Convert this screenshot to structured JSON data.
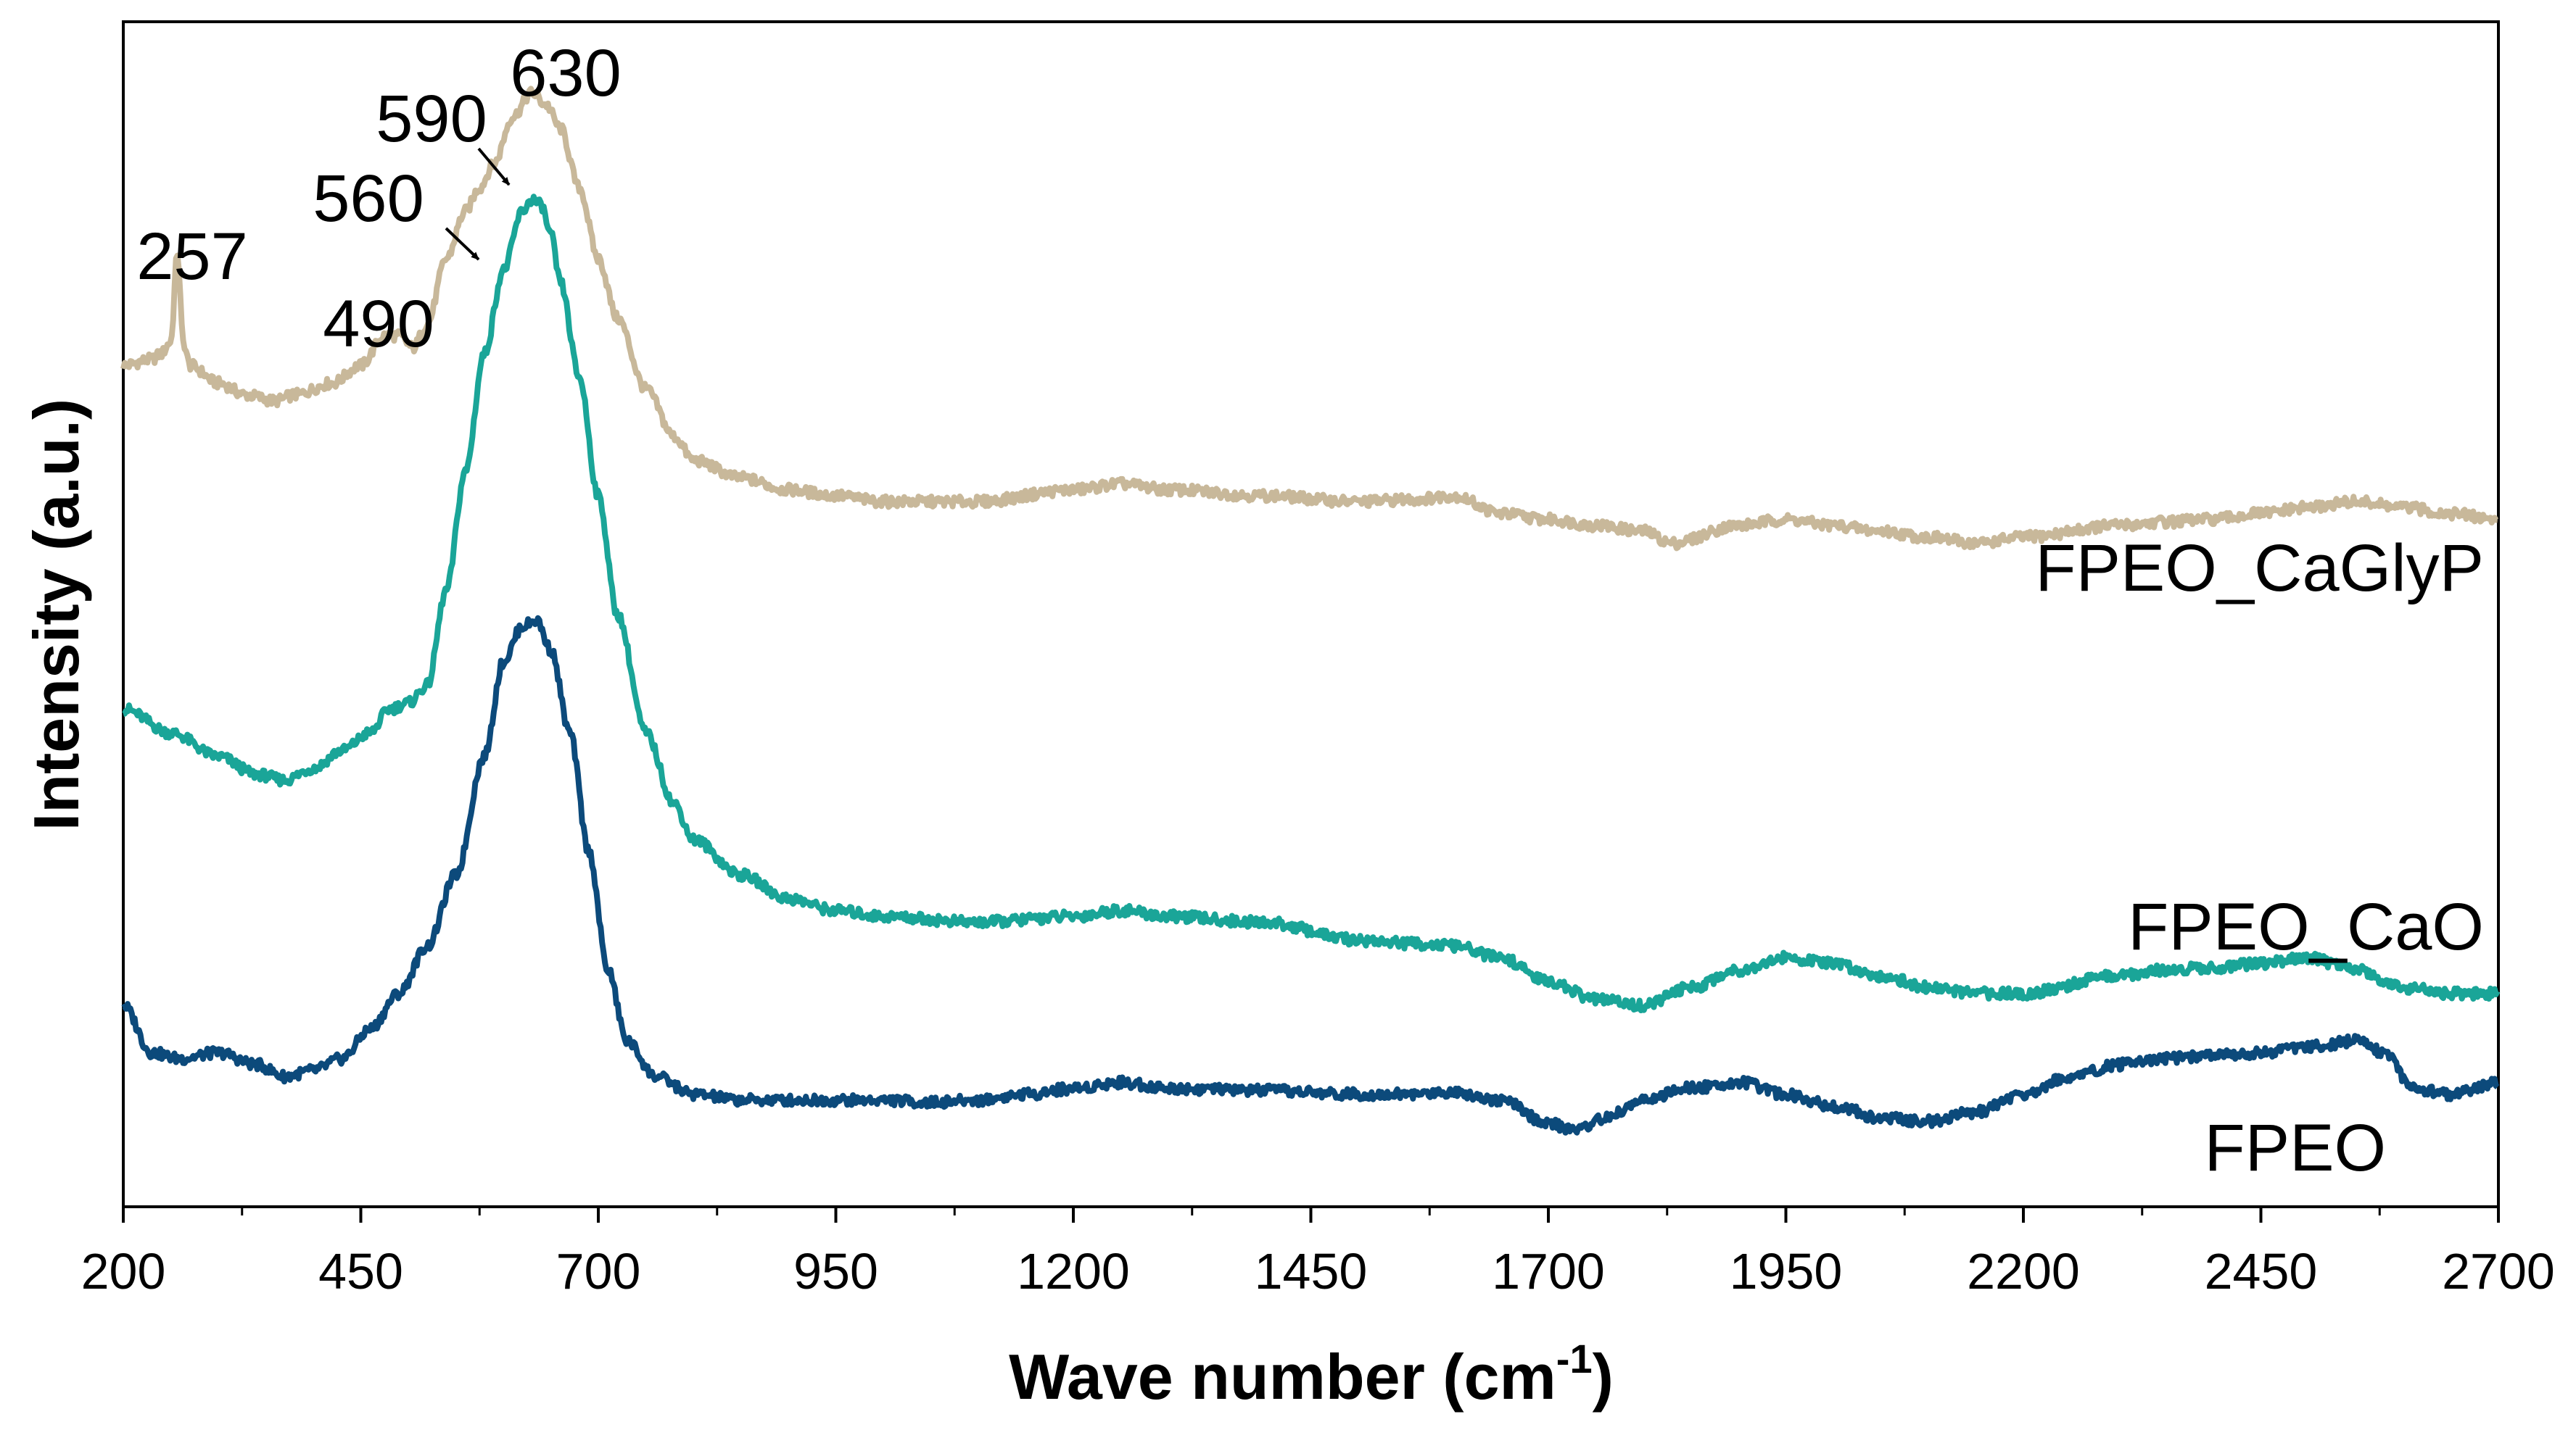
{
  "chart_data": {
    "type": "line",
    "title": "",
    "xlabel": "Wave number (cm",
    "xlabel_sup": "-1",
    "xlabel_close": ")",
    "ylabel": "Intensity (a.u.)",
    "xlim": [
      200,
      2700
    ],
    "ylim": [
      0,
      100
    ],
    "x_ticks": [
      200,
      450,
      700,
      950,
      1200,
      1450,
      1700,
      1950,
      2200,
      2450,
      2700
    ],
    "x_tick_labels": [
      "200",
      "450",
      "700",
      "950",
      "1200",
      "1450",
      "1700",
      "1950",
      "2200",
      "2450",
      "2700"
    ],
    "y_ticks_shown": false,
    "series": [
      {
        "name": "FPEO_CaGlyP",
        "label": "FPEO_CaGlyP",
        "color": "#c8b89a",
        "x": [
          200,
          230,
          240,
          250,
          257,
          263,
          270,
          300,
          330,
          360,
          380,
          420,
          450,
          475,
          490,
          505,
          520,
          540,
          560,
          575,
          590,
          610,
          630,
          645,
          660,
          680,
          700,
          720,
          750,
          780,
          800,
          850,
          900,
          950,
          1000,
          1100,
          1200,
          1250,
          1300,
          1400,
          1500,
          1560,
          1600,
          1650,
          1700,
          1750,
          1800,
          1830,
          1900,
          1950,
          2000,
          2050,
          2100,
          2150,
          2200,
          2300,
          2350,
          2400,
          2450,
          2500,
          2550,
          2600,
          2650,
          2700
        ],
        "y": [
          71,
          71.5,
          72,
          73,
          80.5,
          73,
          71,
          69.5,
          68.5,
          68,
          68.5,
          69.5,
          71,
          73.5,
          73.5,
          72.5,
          74.5,
          80,
          84,
          86,
          88,
          92,
          94,
          93,
          91,
          86,
          80,
          75,
          69,
          65,
          63,
          61.5,
          60.5,
          60,
          59.5,
          59.5,
          60.5,
          61,
          60.5,
          60,
          59.5,
          59.7,
          60,
          58.5,
          58,
          57.5,
          57,
          56,
          57.5,
          58,
          57.5,
          57,
          56.5,
          56,
          56.5,
          57.5,
          57.8,
          58,
          58.5,
          59,
          59.5,
          59,
          58.5,
          58
        ]
      },
      {
        "name": "FPEO_CaO",
        "label": "FPEO_CaO",
        "color": "#1aa598",
        "x": [
          200,
          250,
          300,
          340,
          370,
          400,
          430,
          460,
          480,
          500,
          520,
          540,
          560,
          580,
          600,
          620,
          630,
          640,
          650,
          660,
          680,
          700,
          720,
          750,
          780,
          800,
          850,
          900,
          950,
          1000,
          1100,
          1200,
          1250,
          1300,
          1400,
          1500,
          1560,
          1600,
          1650,
          1700,
          1750,
          1800,
          1850,
          1900,
          1950,
          2000,
          2050,
          2100,
          2150,
          2200,
          2300,
          2350,
          2400,
          2450,
          2500,
          2550,
          2600,
          2650,
          2700
        ],
        "y": [
          42,
          40,
          38,
          36.5,
          36,
          37,
          38.5,
          40,
          42,
          42.5,
          44,
          52,
          62,
          72,
          79,
          84,
          85,
          84.5,
          82,
          78,
          70,
          60,
          50,
          40,
          34,
          31,
          28,
          26,
          25,
          24.5,
          24,
          24.5,
          25,
          24.5,
          24,
          22.5,
          22.2,
          22,
          21,
          19,
          17.5,
          17,
          18.5,
          20,
          21,
          20.5,
          19.5,
          18.5,
          18,
          18,
          19.5,
          20,
          20.2,
          20.5,
          21,
          20,
          18.5,
          18,
          18
        ]
      },
      {
        "name": "FPEO",
        "label": "FPEO",
        "color": "#0c4a7b",
        "x": [
          200,
          230,
          260,
          300,
          340,
          370,
          400,
          430,
          460,
          490,
          520,
          550,
          580,
          600,
          620,
          635,
          650,
          670,
          690,
          710,
          730,
          760,
          800,
          850,
          900,
          950,
          1000,
          1050,
          1100,
          1150,
          1200,
          1250,
          1300,
          1400,
          1500,
          1560,
          1600,
          1650,
          1700,
          1730,
          1760,
          1800,
          1850,
          1900,
          1950,
          2000,
          2050,
          2100,
          2150,
          2200,
          2250,
          2300,
          2350,
          2400,
          2450,
          2500,
          2550,
          2580,
          2610,
          2650,
          2700
        ],
        "y": [
          17,
          13,
          12.5,
          13,
          12,
          11,
          11.5,
          12.5,
          15,
          18,
          22,
          28,
          38,
          46,
          49,
          49.5,
          47,
          40,
          30,
          20,
          14,
          11,
          9.5,
          9,
          9,
          9,
          9,
          8.8,
          9,
          9.5,
          10,
          10.5,
          10,
          9.8,
          9.5,
          9.5,
          9.7,
          9,
          7,
          6.5,
          7.5,
          9,
          10,
          10.5,
          9.5,
          8.5,
          7.5,
          7.2,
          8,
          9.5,
          11,
          12,
          12.5,
          12.8,
          13,
          13.5,
          14,
          13,
          10,
          9.5,
          10.5
        ]
      }
    ],
    "annotations": [
      {
        "text": "257",
        "x": 257
      },
      {
        "text": "490",
        "x": 490
      },
      {
        "text": "560",
        "x": 560
      },
      {
        "text": "590",
        "x": 590
      },
      {
        "text": "630",
        "x": 630
      }
    ]
  }
}
